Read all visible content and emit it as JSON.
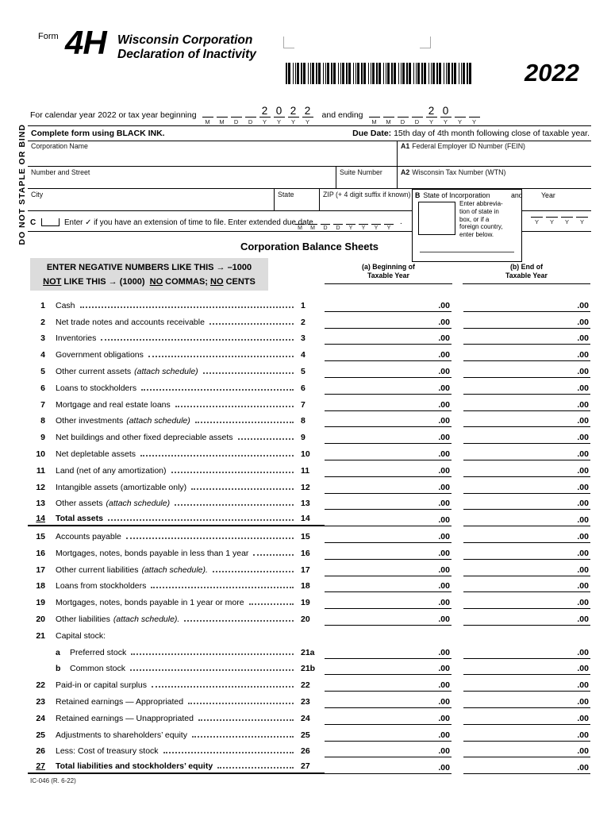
{
  "form": {
    "label": "Form",
    "number": "4H",
    "title_line1": "Wisconsin Corporation",
    "title_line2": "Declaration of Inactivity",
    "tax_year": "2022",
    "side_note": "DO NOT STAPLE OR BIND",
    "doc_code": "IC-046 (R. 6-22)"
  },
  "calendar_line": {
    "prefix": "For calendar year 2022 or tax year beginning",
    "and_ending": "and ending",
    "begin_date": {
      "letters": [
        "M",
        "M",
        "D",
        "D",
        "Y",
        "Y",
        "Y",
        "Y"
      ],
      "values": [
        "",
        "",
        "",
        "",
        "2",
        "0",
        "2",
        "2"
      ]
    },
    "end_date": {
      "letters": [
        "M",
        "M",
        "D",
        "D",
        "Y",
        "Y",
        "Y",
        "Y"
      ],
      "values": [
        "",
        "",
        "",
        "",
        "2",
        "0",
        "",
        ""
      ]
    }
  },
  "ink_row": {
    "instruction": "Complete form using BLACK INK.",
    "due_label": "Due Date:",
    "due_text": "15th day of 4th month following close of taxable year."
  },
  "address": {
    "corporation_name": "Corporation Name",
    "a1_tag": "A1",
    "a1_label": "Federal Employer ID Number (FEIN)",
    "street": "Number and Street",
    "suite": "Suite Number",
    "a2_tag": "A2",
    "a2_label": "Wisconsin Tax Number (WTN)",
    "city": "City",
    "state": "State",
    "zip": "ZIP (+ 4 digit suffix if known)",
    "b_tag": "B",
    "b_label": "State of Incorporation",
    "b_and": "and",
    "b_year": "Year",
    "b_note": "Enter abbrevia-\ntion of state in\nbox, or if a\nforeign country,\nenter below.",
    "b_year_date": {
      "letters": [
        "Y",
        "Y",
        "Y",
        "Y"
      ],
      "values": [
        "",
        "",
        "",
        ""
      ]
    }
  },
  "extension_line": {
    "c_tag": "C",
    "text": "Enter ✓ if you have an extension of time to file. Enter extended due date",
    "date": {
      "letters": [
        "M",
        "M",
        "D",
        "D",
        "Y",
        "Y",
        "Y",
        "Y"
      ],
      "values": [
        "",
        "",
        "",
        "",
        "",
        "",
        "",
        ""
      ]
    },
    "trailing_period": "."
  },
  "balance_sheet": {
    "heading": "Corporation Balance Sheets",
    "negative_note_line1": "ENTER NEGATIVE NUMBERS LIKE THIS → –1000",
    "negative_note_line2": [
      {
        "t": "NOT",
        "u": true
      },
      {
        "t": " LIKE THIS → (1000)  "
      },
      {
        "t": "NO",
        "u": true
      },
      {
        "t": " COMMAS; "
      },
      {
        "t": "NO",
        "u": true
      },
      {
        "t": " CENTS"
      }
    ],
    "col_a_line1": "(a) Beginning of",
    "col_a_line2": "Taxable Year",
    "col_b_line1": "(b) End of",
    "col_b_line2": "Taxable Year",
    "cents": ".00",
    "rows": [
      {
        "num": "1",
        "ref": "1",
        "label": "Cash"
      },
      {
        "num": "2",
        "ref": "2",
        "label": "Net trade notes and accounts receivable"
      },
      {
        "num": "3",
        "ref": "3",
        "label": "Inventories"
      },
      {
        "num": "4",
        "ref": "4",
        "label": "Government obligations"
      },
      {
        "num": "5",
        "ref": "5",
        "label": "Other current assets",
        "italic": "(attach schedule)"
      },
      {
        "num": "6",
        "ref": "6",
        "label": "Loans to stockholders"
      },
      {
        "num": "7",
        "ref": "7",
        "label": "Mortgage and real estate loans"
      },
      {
        "num": "8",
        "ref": "8",
        "label": "Other investments",
        "italic": "(attach schedule)"
      },
      {
        "num": "9",
        "ref": "9",
        "label": "Net buildings and other fixed depreciable assets"
      },
      {
        "num": "10",
        "ref": "10",
        "label": "Net depletable assets"
      },
      {
        "num": "11",
        "ref": "11",
        "label": "Land (net of any amortization)"
      },
      {
        "num": "12",
        "ref": "12",
        "label": "Intangible assets (amortizable only)"
      },
      {
        "num": "13",
        "ref": "13",
        "label": "Other assets",
        "italic": "(attach schedule)"
      },
      {
        "num": "14",
        "ref": "14",
        "label": "Total assets",
        "total": true
      },
      {
        "num": "15",
        "ref": "15",
        "label": "Accounts payable"
      },
      {
        "num": "16",
        "ref": "16",
        "label": "Mortgages, notes, bonds payable in less than 1 year"
      },
      {
        "num": "17",
        "ref": "17",
        "label": "Other current liabilities",
        "italic": "(attach schedule)."
      },
      {
        "num": "18",
        "ref": "18",
        "label": "Loans from stockholders"
      },
      {
        "num": "19",
        "ref": "19",
        "label": "Mortgages, notes, bonds payable in 1 year or more"
      },
      {
        "num": "20",
        "ref": "20",
        "label": "Other liabilities",
        "italic": "(attach schedule)."
      },
      {
        "num": "21",
        "ref": "21",
        "label": "Capital stock:",
        "header_only": true
      },
      {
        "num": "",
        "ref": "21a",
        "sub": "a",
        "label": "Preferred stock"
      },
      {
        "num": "",
        "ref": "21b",
        "sub": "b",
        "label": "Common stock"
      },
      {
        "num": "22",
        "ref": "22",
        "label": "Paid-in or capital surplus"
      },
      {
        "num": "23",
        "ref": "23",
        "label": "Retained earnings — Appropriated"
      },
      {
        "num": "24",
        "ref": "24",
        "label": "Retained earnings — Unappropriated"
      },
      {
        "num": "25",
        "ref": "25",
        "label": "Adjustments to shareholders’ equity"
      },
      {
        "num": "26",
        "ref": "26",
        "label": "Less: Cost of treasury stock"
      },
      {
        "num": "27",
        "ref": "27",
        "label": "Total liabilities and stockholders’ equity",
        "total": true
      }
    ]
  }
}
